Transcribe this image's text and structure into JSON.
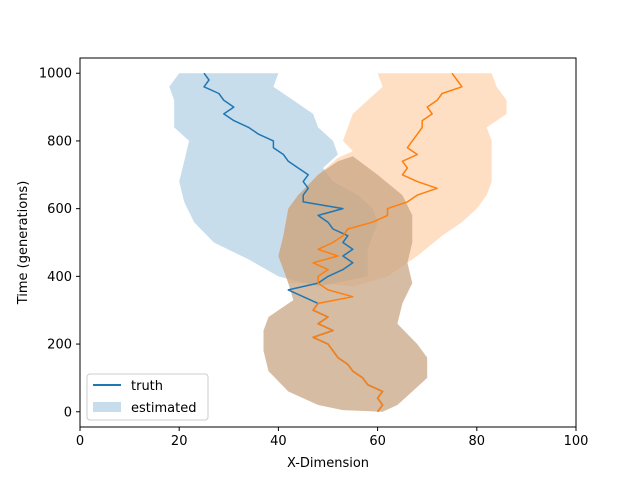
{
  "chart_data": {
    "type": "line",
    "title": "",
    "xlabel": "X-Dimension",
    "ylabel": "Time (generations)",
    "xlim": [
      0,
      100
    ],
    "ylim": [
      -45,
      1045
    ],
    "xticks": [
      0,
      20,
      40,
      60,
      80,
      100
    ],
    "yticks": [
      0,
      200,
      400,
      600,
      800,
      1000
    ],
    "legend_position": "lower-left",
    "legend": [
      {
        "label": "truth",
        "kind": "line",
        "color": "#1f77b4"
      },
      {
        "label": "estimated",
        "kind": "patch",
        "color": "#1f77b4",
        "alpha": 0.25
      }
    ],
    "series": [
      {
        "name": "truth-blue",
        "color": "#1f77b4",
        "points": [
          [
            60,
            0
          ],
          [
            61,
            20
          ],
          [
            60,
            40
          ],
          [
            61,
            60
          ],
          [
            58,
            80
          ],
          [
            57,
            100
          ],
          [
            55,
            120
          ],
          [
            54,
            140
          ],
          [
            52,
            160
          ],
          [
            51,
            180
          ],
          [
            50,
            200
          ],
          [
            47,
            220
          ],
          [
            51,
            240
          ],
          [
            48,
            260
          ],
          [
            50,
            280
          ],
          [
            47,
            300
          ],
          [
            48,
            320
          ],
          [
            45,
            340
          ],
          [
            42,
            360
          ],
          [
            48,
            380
          ],
          [
            50,
            400
          ],
          [
            53,
            420
          ],
          [
            55,
            440
          ],
          [
            53,
            460
          ],
          [
            55,
            480
          ],
          [
            53,
            500
          ],
          [
            54,
            520
          ],
          [
            51,
            540
          ],
          [
            50,
            560
          ],
          [
            48,
            580
          ],
          [
            53,
            600
          ],
          [
            45,
            620
          ],
          [
            45,
            640
          ],
          [
            46,
            660
          ],
          [
            45,
            680
          ],
          [
            46,
            700
          ],
          [
            44,
            720
          ],
          [
            42,
            740
          ],
          [
            41,
            760
          ],
          [
            39,
            780
          ],
          [
            39,
            800
          ],
          [
            36,
            820
          ],
          [
            34,
            840
          ],
          [
            31,
            860
          ],
          [
            29,
            880
          ],
          [
            31,
            900
          ],
          [
            29,
            920
          ],
          [
            28,
            940
          ],
          [
            25,
            960
          ],
          [
            26,
            980
          ],
          [
            25,
            1000
          ]
        ]
      },
      {
        "name": "truth-orange",
        "color": "#ff7f0e",
        "points": [
          [
            60,
            0
          ],
          [
            61,
            20
          ],
          [
            60,
            40
          ],
          [
            61,
            60
          ],
          [
            58,
            80
          ],
          [
            57,
            100
          ],
          [
            55,
            120
          ],
          [
            54,
            140
          ],
          [
            52,
            160
          ],
          [
            51,
            180
          ],
          [
            50,
            200
          ],
          [
            47,
            220
          ],
          [
            51,
            240
          ],
          [
            48,
            260
          ],
          [
            50,
            280
          ],
          [
            47,
            300
          ],
          [
            48,
            320
          ],
          [
            55,
            340
          ],
          [
            50,
            360
          ],
          [
            48,
            380
          ],
          [
            48,
            400
          ],
          [
            50,
            420
          ],
          [
            47,
            440
          ],
          [
            52,
            460
          ],
          [
            48,
            480
          ],
          [
            51,
            500
          ],
          [
            53,
            520
          ],
          [
            54,
            540
          ],
          [
            59,
            560
          ],
          [
            62,
            580
          ],
          [
            62,
            600
          ],
          [
            66,
            620
          ],
          [
            68,
            640
          ],
          [
            72,
            660
          ],
          [
            68,
            680
          ],
          [
            65,
            700
          ],
          [
            66,
            720
          ],
          [
            65,
            740
          ],
          [
            68,
            760
          ],
          [
            66,
            780
          ],
          [
            67,
            800
          ],
          [
            68,
            820
          ],
          [
            69,
            840
          ],
          [
            69,
            860
          ],
          [
            71,
            880
          ],
          [
            70,
            900
          ],
          [
            72,
            920
          ],
          [
            73,
            940
          ],
          [
            77,
            960
          ],
          [
            76,
            980
          ],
          [
            75,
            1000
          ]
        ]
      }
    ],
    "bands": [
      {
        "name": "estimated-blue",
        "color": "#1f77b4",
        "alpha": 0.25,
        "rows": [
          [
            40,
            1000
          ],
          [
            39,
            960
          ],
          [
            43,
            920
          ],
          [
            47,
            880
          ],
          [
            48,
            840
          ],
          [
            51,
            800
          ],
          [
            52,
            760
          ],
          [
            49,
            720
          ],
          [
            51,
            680
          ],
          [
            56,
            640
          ],
          [
            59,
            600
          ],
          [
            60,
            560
          ],
          [
            59,
            520
          ],
          [
            58,
            480
          ],
          [
            58,
            440
          ],
          [
            58,
            400
          ],
          [
            48,
            370
          ],
          [
            40,
            400
          ],
          [
            34,
            450
          ],
          [
            27,
            500
          ],
          [
            23,
            560
          ],
          [
            21,
            620
          ],
          [
            20,
            680
          ],
          [
            21,
            740
          ],
          [
            22,
            800
          ],
          [
            19,
            840
          ],
          [
            19,
            880
          ],
          [
            19,
            920
          ],
          [
            18,
            960
          ],
          [
            20,
            1000
          ]
        ]
      },
      {
        "name": "estimated-orange",
        "color": "#ff7f0e",
        "alpha": 0.25,
        "rows": [
          [
            83,
            1000
          ],
          [
            84,
            960
          ],
          [
            86,
            920
          ],
          [
            86,
            880
          ],
          [
            82,
            840
          ],
          [
            83,
            800
          ],
          [
            83,
            760
          ],
          [
            83,
            720
          ],
          [
            83,
            680
          ],
          [
            82,
            640
          ],
          [
            80,
            600
          ],
          [
            77,
            560
          ],
          [
            73,
            520
          ],
          [
            68,
            460
          ],
          [
            64,
            420
          ],
          [
            62,
            400
          ],
          [
            55,
            370
          ],
          [
            48,
            380
          ],
          [
            42,
            380
          ],
          [
            41,
            420
          ],
          [
            40,
            460
          ],
          [
            41,
            520
          ],
          [
            42,
            600
          ],
          [
            44,
            640
          ],
          [
            48,
            700
          ],
          [
            52,
            750
          ],
          [
            55,
            770
          ],
          [
            53,
            800
          ],
          [
            54,
            840
          ],
          [
            55,
            880
          ],
          [
            58,
            920
          ],
          [
            61,
            960
          ],
          [
            60,
            1000
          ]
        ]
      },
      {
        "name": "estimated-overlap",
        "color": "#c8a584",
        "alpha": 0.75,
        "rows": [
          [
            55,
            755
          ],
          [
            60,
            700
          ],
          [
            65,
            640
          ],
          [
            67,
            580
          ],
          [
            67,
            500
          ],
          [
            66,
            440
          ],
          [
            67,
            380
          ],
          [
            65,
            320
          ],
          [
            64,
            260
          ],
          [
            68,
            200
          ],
          [
            70,
            160
          ],
          [
            70,
            100
          ],
          [
            67,
            60
          ],
          [
            64,
            20
          ],
          [
            61,
            0
          ],
          [
            53,
            5
          ],
          [
            48,
            20
          ],
          [
            42,
            60
          ],
          [
            38,
            120
          ],
          [
            37,
            180
          ],
          [
            37,
            240
          ],
          [
            38,
            280
          ],
          [
            40,
            300
          ],
          [
            43,
            330
          ],
          [
            42,
            380
          ],
          [
            41,
            420
          ],
          [
            40,
            460
          ],
          [
            41,
            520
          ],
          [
            42,
            600
          ],
          [
            44,
            640
          ],
          [
            48,
            700
          ],
          [
            52,
            740
          ]
        ]
      }
    ]
  }
}
